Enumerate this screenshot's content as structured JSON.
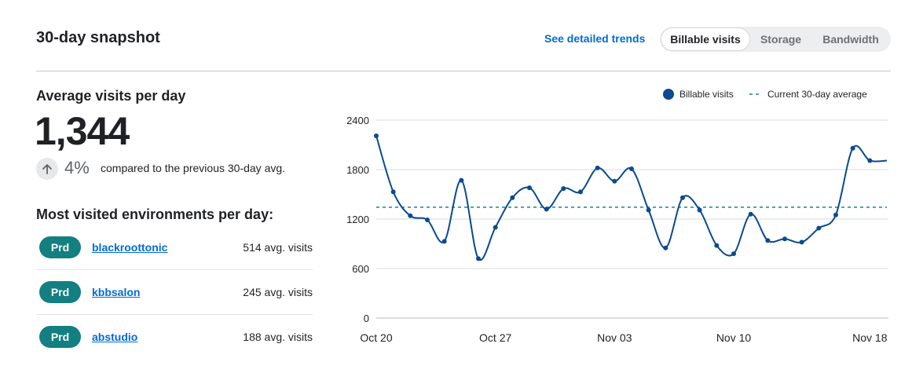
{
  "header": {
    "title": "30-day snapshot",
    "trends_link": "See detailed trends",
    "segments": [
      "Billable visits",
      "Storage",
      "Bandwidth"
    ],
    "active_segment": "Billable visits"
  },
  "summary": {
    "label": "Average visits per day",
    "value": "1,344",
    "change_pct": "4%",
    "change_direction": "up",
    "change_text": "compared to the previous 30-day avg."
  },
  "environments": {
    "heading": "Most visited environments per day:",
    "rows": [
      {
        "badge": "Prd",
        "name": "blackroottonic",
        "visits": "514 avg. visits"
      },
      {
        "badge": "Prd",
        "name": "kbbsalon",
        "visits": "245 avg. visits"
      },
      {
        "badge": "Prd",
        "name": "abstudio",
        "visits": "188 avg. visits"
      }
    ]
  },
  "colors": {
    "accent_link": "#006bd6",
    "badge_teal": "#137f80",
    "series_line": "#0a4a8f",
    "average_line": "#15858a"
  },
  "chart_data": {
    "type": "line",
    "legend": {
      "series": "Billable visits",
      "average": "Current 30-day average",
      "placement": "top-right"
    },
    "x_tick_labels": [
      "Oct 20",
      "Oct 27",
      "Nov 03",
      "Nov 10",
      "Nov 18"
    ],
    "x_tick_dates": [
      "2024-10-20",
      "2024-10-27",
      "2024-11-03",
      "2024-11-10",
      "2024-11-18"
    ],
    "y_ticks": [
      0,
      600,
      1200,
      1800,
      2400
    ],
    "ylim": [
      0,
      2400
    ],
    "grid": true,
    "average": 1344,
    "series": [
      {
        "name": "Billable visits",
        "x": [
          "2024-10-20",
          "2024-10-21",
          "2024-10-22",
          "2024-10-23",
          "2024-10-24",
          "2024-10-25",
          "2024-10-26",
          "2024-10-27",
          "2024-10-28",
          "2024-10-29",
          "2024-10-30",
          "2024-10-31",
          "2024-11-01",
          "2024-11-02",
          "2024-11-03",
          "2024-11-04",
          "2024-11-05",
          "2024-11-06",
          "2024-11-07",
          "2024-11-08",
          "2024-11-09",
          "2024-11-10",
          "2024-11-11",
          "2024-11-12",
          "2024-11-13",
          "2024-11-14",
          "2024-11-15",
          "2024-11-16",
          "2024-11-17",
          "2024-11-18",
          "2024-11-19"
        ],
        "values": [
          2210,
          1530,
          1240,
          1190,
          930,
          1670,
          720,
          1100,
          1460,
          1580,
          1320,
          1570,
          1530,
          1820,
          1660,
          1810,
          1310,
          850,
          1460,
          1310,
          880,
          780,
          1260,
          940,
          960,
          920,
          1090,
          1250,
          2060,
          1910,
          1910
        ]
      }
    ]
  }
}
